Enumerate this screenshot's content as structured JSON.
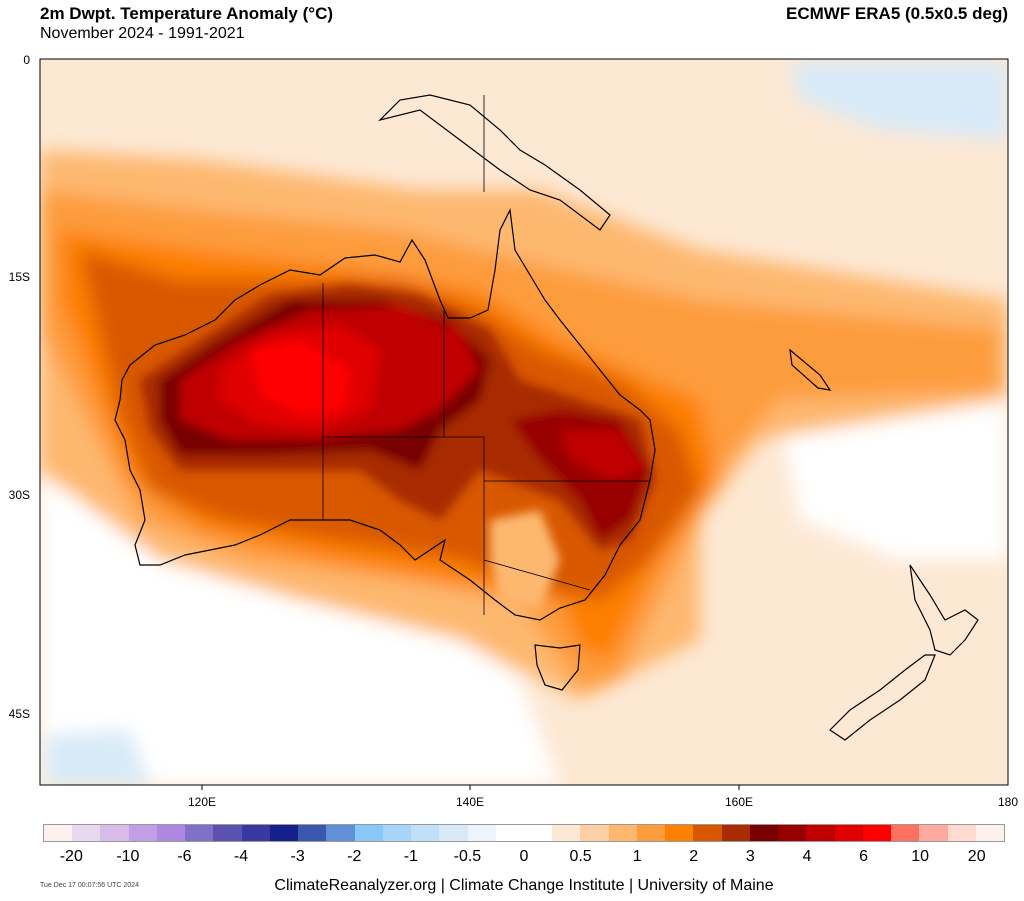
{
  "header": {
    "title": "2m Dwpt. Temperature Anomaly (°C)",
    "subtitle": "November 2024 - 1991-2021",
    "source": "ECMWF ERA5 (0.5x0.5 deg)"
  },
  "map": {
    "region": "Australia / New Zealand",
    "lat_labels": [
      "0",
      "15S",
      "30S",
      "45S"
    ],
    "lon_labels": [
      "120E",
      "140E",
      "160E",
      "180"
    ],
    "lon_range": [
      108,
      180
    ],
    "lat_range": [
      0,
      -50
    ]
  },
  "colorbar": {
    "labels": [
      "-20",
      "-10",
      "-6",
      "-4",
      "-3",
      "-2",
      "-1",
      "-0.5",
      "0",
      "0.5",
      "1",
      "2",
      "3",
      "4",
      "6",
      "10",
      "20"
    ],
    "colors": [
      "#fff0f0",
      "#e8d8f0",
      "#d8bbe8",
      "#c49ee4",
      "#ae88e0",
      "#8070c8",
      "#5c50b0",
      "#3838a0",
      "#14208c",
      "#3a58b0",
      "#6090d8",
      "#88c8f8",
      "#a8d4f8",
      "#c0e0f8",
      "#d8eaf8",
      "#eef4fc",
      "#ffffff",
      "#ffffff",
      "#fde8d4",
      "#fdd0a4",
      "#fdb870",
      "#fd9c3c",
      "#fd8000",
      "#d85800",
      "#a82c00",
      "#780000",
      "#980000",
      "#c00000",
      "#e00000",
      "#ff0000",
      "#ff7060",
      "#ffaaa0",
      "#fedad0",
      "#fff0f0"
    ]
  },
  "footer": {
    "timestamp": "Tue Dec 17 00:07:56 UTC 2024",
    "credits": "ClimateReanalyzer.org | Climate Change Institute | University of Maine"
  }
}
